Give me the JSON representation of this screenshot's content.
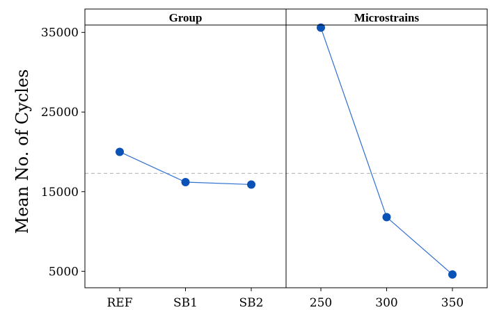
{
  "chart_data": {
    "type": "line",
    "ylabel": "Mean No. of Cycles",
    "ylim": [
      3500,
      37500
    ],
    "yticks": [
      5000,
      15000,
      25000,
      35000
    ],
    "reference_line": {
      "value": 17300,
      "style": "dashed",
      "color": "#b0b0b0"
    },
    "marker_color": "#0a52b5",
    "line_color": "#2f6fd0",
    "panels": [
      {
        "title": "Group",
        "categories": [
          "REF",
          "SB1",
          "SB2"
        ],
        "values": [
          20000,
          16200,
          15900
        ]
      },
      {
        "title": "Microstrains",
        "categories": [
          "250",
          "300",
          "350"
        ],
        "values": [
          35600,
          11800,
          4600
        ]
      }
    ]
  }
}
